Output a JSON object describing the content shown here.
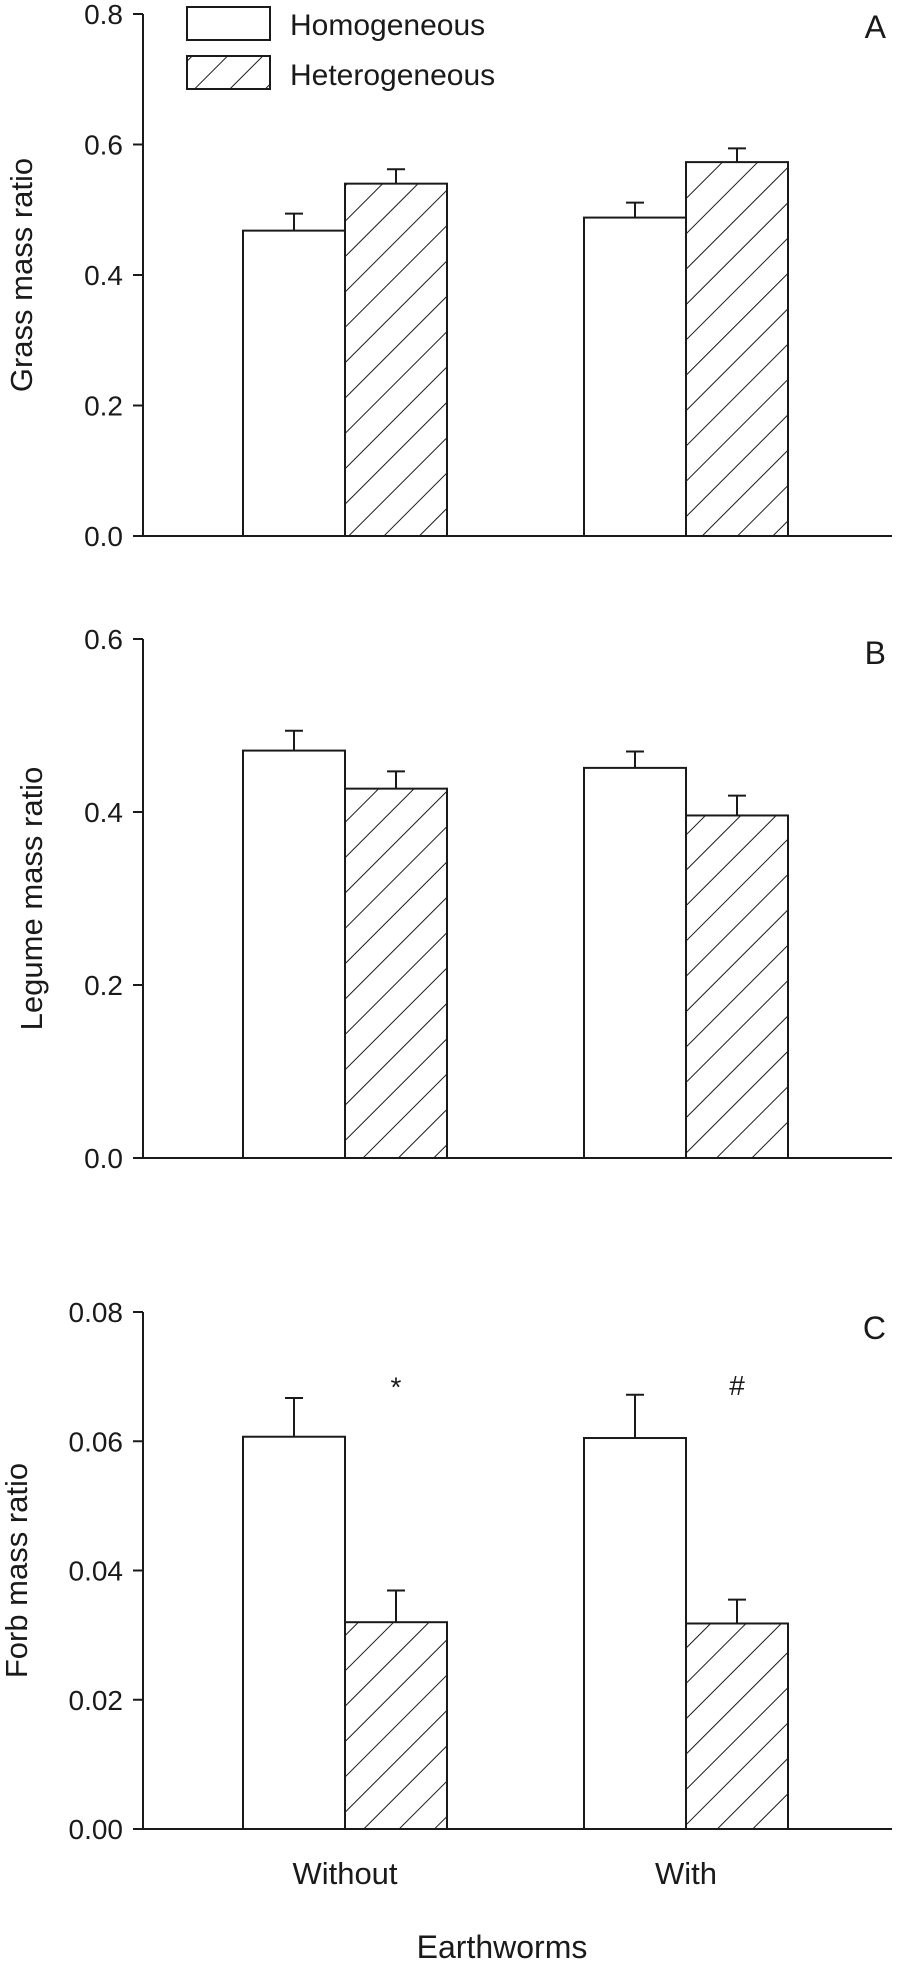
{
  "legend": {
    "placement": "top-left",
    "entries": [
      {
        "label": "Homogeneous",
        "pattern": "open"
      },
      {
        "label": "Heterogeneous",
        "pattern": "hatched"
      }
    ]
  },
  "xlabel": "Earthworms",
  "chart_data": [
    {
      "type": "bar",
      "panel_label": "A",
      "ylabel": "Grass mass ratio",
      "ylim": [
        0,
        0.8
      ],
      "yticks": [
        "0.0",
        "0.2",
        "0.4",
        "0.6",
        "0.8"
      ],
      "grid": false,
      "categories": [
        "Without",
        "With"
      ],
      "series": [
        {
          "name": "Homogeneous",
          "values": [
            0.468,
            0.488
          ],
          "errors": [
            0.026,
            0.023
          ]
        },
        {
          "name": "Heterogeneous",
          "values": [
            0.54,
            0.573
          ],
          "errors": [
            0.022,
            0.021
          ]
        }
      ],
      "annotations": []
    },
    {
      "type": "bar",
      "panel_label": "B",
      "ylabel": "Legume mass ratio",
      "ylim": [
        0,
        0.6
      ],
      "yticks": [
        "0.0",
        "0.2",
        "0.4",
        "0.6"
      ],
      "grid": false,
      "categories": [
        "Without",
        "With"
      ],
      "series": [
        {
          "name": "Homogeneous",
          "values": [
            0.471,
            0.451
          ],
          "errors": [
            0.023,
            0.019
          ]
        },
        {
          "name": "Heterogeneous",
          "values": [
            0.427,
            0.396
          ],
          "errors": [
            0.02,
            0.023
          ]
        }
      ],
      "annotations": []
    },
    {
      "type": "bar",
      "panel_label": "C",
      "ylabel": "Forb mass ratio",
      "ylim": [
        0,
        0.08
      ],
      "yticks": [
        "0.00",
        "0.02",
        "0.04",
        "0.06",
        "0.08"
      ],
      "grid": false,
      "categories": [
        "Without",
        "With"
      ],
      "series": [
        {
          "name": "Homogeneous",
          "values": [
            0.0607,
            0.0605
          ],
          "errors": [
            0.006,
            0.0067
          ]
        },
        {
          "name": "Heterogeneous",
          "values": [
            0.032,
            0.0318
          ],
          "errors": [
            0.0049,
            0.0037
          ]
        }
      ],
      "annotations": [
        {
          "text": "*",
          "category": 0,
          "value": 0.0688
        },
        {
          "text": "#",
          "category": 1,
          "value": 0.069
        }
      ]
    }
  ]
}
